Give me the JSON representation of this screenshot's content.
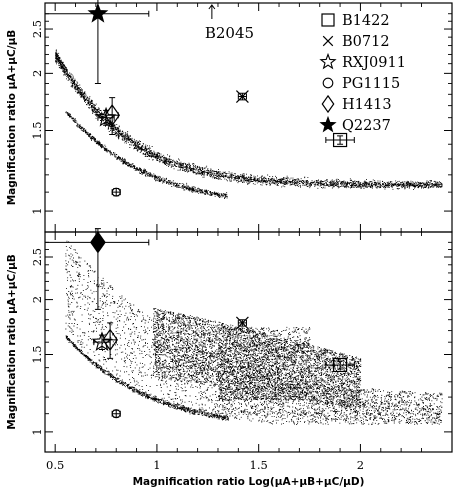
{
  "chart_data": [
    {
      "type": "scatter",
      "panel": "top",
      "ylabel": "Magnification ratio  μA+μC/μB",
      "xlim": [
        0.45,
        2.45
      ],
      "ylim": [
        0.9,
        2.85
      ],
      "yscale": "log",
      "yticks": [
        "1",
        "1.5",
        "2",
        "2.5"
      ],
      "xticks": [
        "0.5",
        "1",
        "1.5",
        "2"
      ],
      "xtick_labels_shown": false,
      "annotation": "B2045",
      "legend": {
        "position": "top-right",
        "entries": [
          {
            "symbol": "open-square",
            "label": "B1422"
          },
          {
            "symbol": "cross",
            "label": "B0712"
          },
          {
            "symbol": "open-star",
            "label": "RXJ0911"
          },
          {
            "symbol": "open-circle",
            "label": "PG1115"
          },
          {
            "symbol": "open-diamond",
            "label": "H1413"
          },
          {
            "symbol": "filled-star",
            "label": "Q2237"
          }
        ]
      },
      "points": [
        {
          "name": "B1422",
          "symbol": "open-square",
          "x": 1.9,
          "y": 1.43,
          "xerr": 0.07,
          "yerr": 0.03
        },
        {
          "name": "B0712",
          "symbol": "cross",
          "x": 1.42,
          "y": 1.78,
          "xerr": 0.02,
          "yerr": 0.03
        },
        {
          "name": "RXJ0911",
          "symbol": "open-star",
          "x": 0.75,
          "y": 1.6,
          "xerr": 0.04,
          "yerr": 0.06
        },
        {
          "name": "PG1115",
          "symbol": "open-circle",
          "x": 0.8,
          "y": 1.1,
          "xerr": 0.02,
          "yerr": 0.02
        },
        {
          "name": "H1413",
          "symbol": "open-diamond",
          "x": 0.78,
          "y": 1.62,
          "xerr": 0.03,
          "yerr": 0.15
        },
        {
          "name": "Q2237",
          "symbol": "filled-star",
          "x": 0.71,
          "y": 2.7,
          "xerr_low": 0.26,
          "xerr_high": 0.25,
          "yerr_low": 0.8,
          "yerr_high": 0.2
        }
      ],
      "simulation": {
        "upper_band_x": [
          0.5,
          2.4
        ],
        "lower_band_x": [
          0.55,
          1.35
        ]
      }
    },
    {
      "type": "scatter",
      "panel": "bottom",
      "ylabel": "Magnification ratio  μA+μC/μB",
      "xlabel": "Magnification ratio  Log(μA+μB+μC/μD)",
      "xlim": [
        0.45,
        2.45
      ],
      "ylim": [
        0.9,
        2.85
      ],
      "yscale": "log",
      "yticks": [
        "1",
        "1.5",
        "2",
        "2.5"
      ],
      "xticks": [
        "0.5",
        "1",
        "1.5",
        "2"
      ],
      "points": [
        {
          "name": "B1422",
          "symbol": "open-square",
          "x": 1.9,
          "y": 1.42,
          "xerr": 0.07,
          "yerr": 0.03
        },
        {
          "name": "B0712",
          "symbol": "cross",
          "x": 1.42,
          "y": 1.77,
          "xerr": 0.02,
          "yerr": 0.03
        },
        {
          "name": "RXJ0911",
          "symbol": "open-star",
          "x": 0.73,
          "y": 1.6,
          "xerr": 0.04,
          "yerr": 0.06
        },
        {
          "name": "PG1115",
          "symbol": "open-circle",
          "x": 0.8,
          "y": 1.1,
          "xerr": 0.02,
          "yerr": 0.02
        },
        {
          "name": "H1413",
          "symbol": "open-diamond",
          "x": 0.77,
          "y": 1.62,
          "xerr": 0.03,
          "yerr": 0.15
        },
        {
          "name": "Q2237",
          "symbol": "filled-diamond",
          "x": 0.71,
          "y": 2.7,
          "xerr_low": 0.26,
          "xerr_high": 0.25,
          "yerr_low": 0.8,
          "yerr_high": 0.2
        }
      ],
      "simulation": {
        "wide_band_x": [
          0.55,
          2.4
        ],
        "dense_region_x": [
          0.98,
          2.0
        ],
        "lower_band_x": [
          0.55,
          1.35
        ]
      }
    }
  ]
}
